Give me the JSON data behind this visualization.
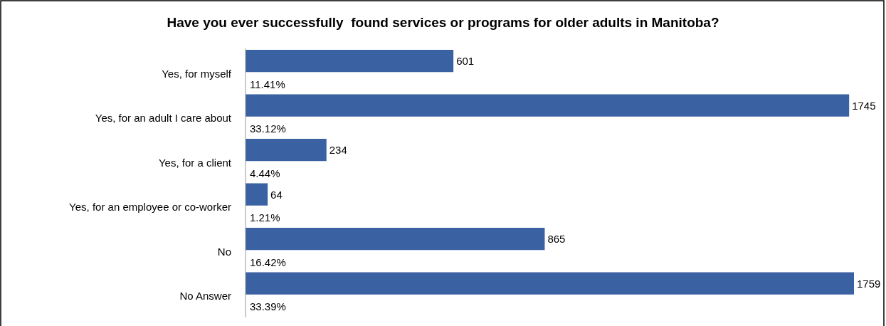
{
  "chart_data": {
    "type": "bar",
    "orientation": "horizontal",
    "title": "Have you ever successfully  found services or programs for older adults in Manitoba?",
    "categories": [
      "Yes, for myself",
      "Yes, for an adult I care about",
      "Yes, for a client",
      "Yes, for an employee or co-worker",
      "No",
      "No Answer"
    ],
    "values": [
      601,
      1745,
      234,
      64,
      865,
      1759
    ],
    "color": "#3a61a2",
    "data_labels": true,
    "annotations": [
      {
        "text": "11.41%",
        "y": "Yes, for myself"
      },
      {
        "text": "33.12%",
        "y": "Yes, for an adult I care about"
      },
      {
        "text": "4.44%",
        "y": "Yes, for a client"
      },
      {
        "text": "1.21%",
        "y": "Yes, for an employee or co-worker"
      },
      {
        "text": "16.42%",
        "y": "No"
      },
      {
        "text": "33.39%",
        "y": "No Answer"
      }
    ]
  }
}
